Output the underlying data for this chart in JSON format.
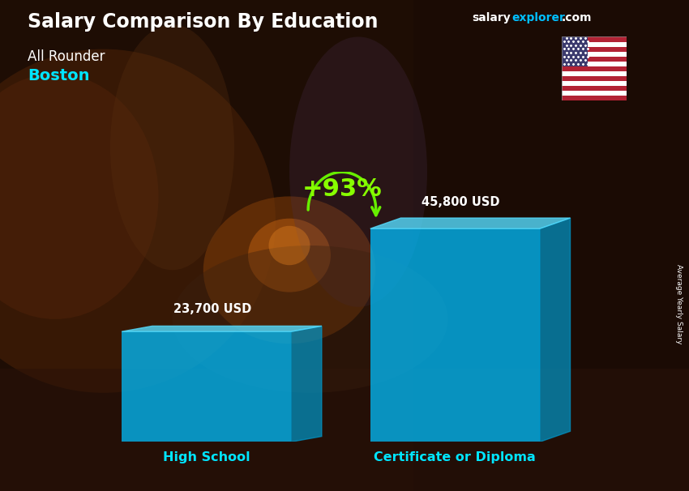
{
  "title": "Salary Comparison By Education",
  "subtitle": "All Rounder",
  "city": "Boston",
  "categories": [
    "High School",
    "Certificate or Diploma"
  ],
  "values": [
    23700,
    45800
  ],
  "value_labels": [
    "23,700 USD",
    "45,800 USD"
  ],
  "pct_change": "+93%",
  "bar_color_face": "#00BFFF",
  "bar_color_top": "#55DDFF",
  "bar_color_side": "#0099CC",
  "bar_alpha": 0.75,
  "bg_color": "#3d1f08",
  "title_color": "#FFFFFF",
  "subtitle_color": "#FFFFFF",
  "city_color": "#00E5FF",
  "label_color": "#FFFFFF",
  "category_color": "#00E5FF",
  "pct_color": "#88FF00",
  "arrow_color": "#66EE00",
  "website_salary_color": "#FFFFFF",
  "website_explorer_color": "#00BFFF",
  "website_com_color": "#FFFFFF",
  "rotated_label": "Average Yearly Salary",
  "rotated_label_color": "#FFFFFF",
  "ylim": [
    0,
    58000
  ],
  "bar_width": 0.3,
  "bar_positions": [
    0.28,
    0.72
  ]
}
